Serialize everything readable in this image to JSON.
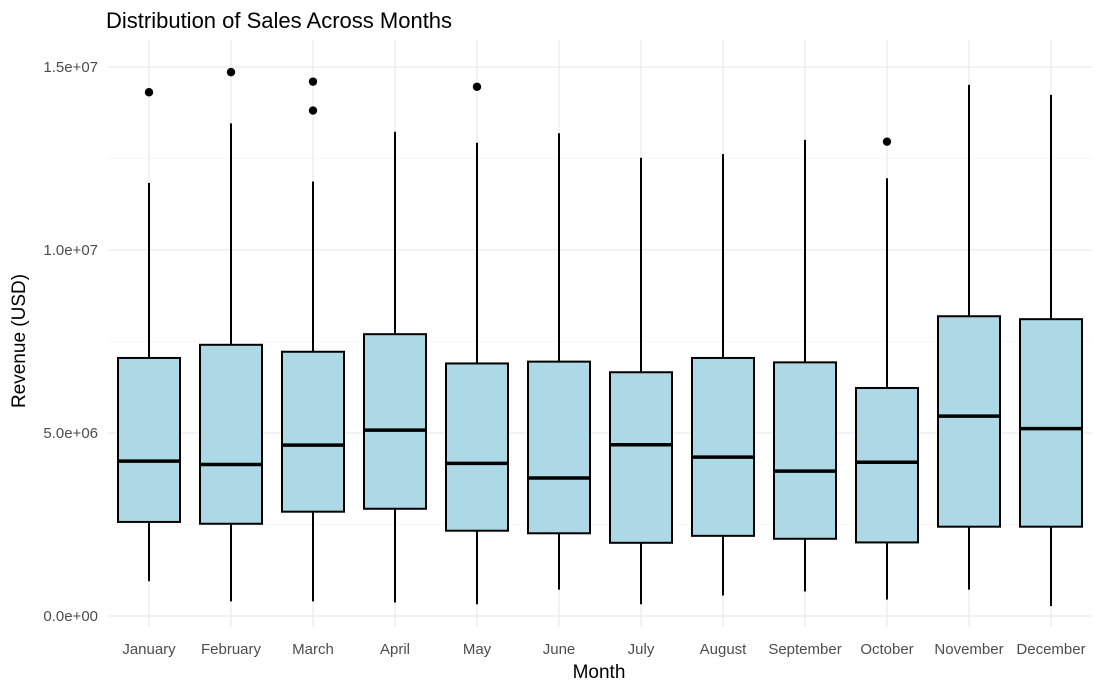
{
  "chart_data": {
    "type": "boxplot",
    "title": "Distribution of Sales Across Months",
    "xlabel": "Month",
    "ylabel": "Revenue (USD)",
    "ylim": [
      -300000,
      15500000
    ],
    "yticks": [
      {
        "value": 0,
        "label": "0.0e+00"
      },
      {
        "value": 5000000,
        "label": "5.0e+06"
      },
      {
        "value": 10000000,
        "label": "1.0e+07"
      },
      {
        "value": 15000000,
        "label": "1.5e+07"
      }
    ],
    "fill_color": "#add8e6",
    "grid": true,
    "categories": [
      "January",
      "February",
      "March",
      "April",
      "May",
      "June",
      "July",
      "August",
      "September",
      "October",
      "November",
      "December"
    ],
    "boxes": [
      {
        "min": 950000,
        "q1": 2570000,
        "median": 4230000,
        "q3": 7050000,
        "max": 11830000,
        "outliers": [
          14310000
        ]
      },
      {
        "min": 400000,
        "q1": 2520000,
        "median": 4140000,
        "q3": 7410000,
        "max": 13460000,
        "outliers": [
          14860000
        ]
      },
      {
        "min": 400000,
        "q1": 2850000,
        "median": 4670000,
        "q3": 7220000,
        "max": 11870000,
        "outliers": [
          14600000,
          13810000
        ]
      },
      {
        "min": 370000,
        "q1": 2930000,
        "median": 5080000,
        "q3": 7700000,
        "max": 13230000,
        "outliers": []
      },
      {
        "min": 320000,
        "q1": 2330000,
        "median": 4170000,
        "q3": 6900000,
        "max": 12930000,
        "outliers": [
          14460000
        ]
      },
      {
        "min": 720000,
        "q1": 2260000,
        "median": 3770000,
        "q3": 6950000,
        "max": 13190000,
        "outliers": []
      },
      {
        "min": 320000,
        "q1": 2000000,
        "median": 4680000,
        "q3": 6660000,
        "max": 12520000,
        "outliers": []
      },
      {
        "min": 560000,
        "q1": 2190000,
        "median": 4340000,
        "q3": 7050000,
        "max": 12620000,
        "outliers": []
      },
      {
        "min": 670000,
        "q1": 2110000,
        "median": 3960000,
        "q3": 6930000,
        "max": 13010000,
        "outliers": []
      },
      {
        "min": 450000,
        "q1": 2010000,
        "median": 4200000,
        "q3": 6230000,
        "max": 11960000,
        "outliers": [
          12960000
        ]
      },
      {
        "min": 720000,
        "q1": 2440000,
        "median": 5460000,
        "q3": 8190000,
        "max": 14510000,
        "outliers": []
      },
      {
        "min": 270000,
        "q1": 2440000,
        "median": 5120000,
        "q3": 8110000,
        "max": 14240000,
        "outliers": []
      }
    ]
  }
}
